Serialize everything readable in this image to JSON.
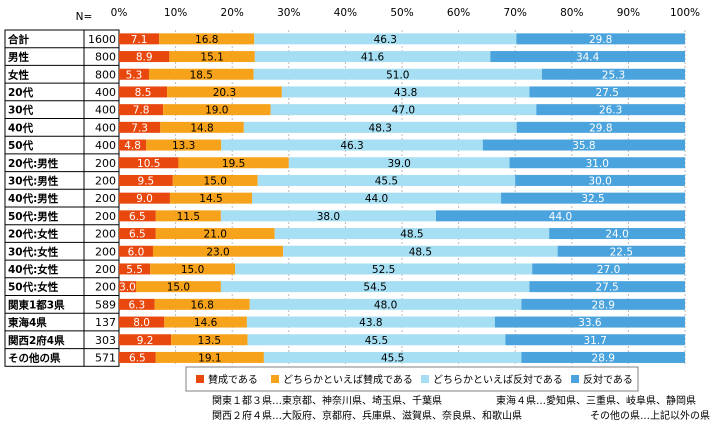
{
  "chart_data": {
    "type": "bar",
    "orientation": "horizontal",
    "stacked": "percent",
    "n_header": "N=",
    "xlim": [
      0,
      100
    ],
    "x_ticks": [
      "0%",
      "10%",
      "20%",
      "30%",
      "40%",
      "50%",
      "60%",
      "70%",
      "80%",
      "90%",
      "100%"
    ],
    "categories": [
      "合計",
      "男性",
      "女性",
      "20代",
      "30代",
      "40代",
      "50代",
      "20代:男性",
      "30代:男性",
      "40代:男性",
      "50代:男性",
      "20代:女性",
      "30代:女性",
      "40代:女性",
      "50代:女性",
      "関東1都3県",
      "東海4県",
      "関西2府4県",
      "その他の県"
    ],
    "n": [
      1600,
      800,
      800,
      400,
      400,
      400,
      400,
      200,
      200,
      200,
      200,
      200,
      200,
      200,
      200,
      589,
      137,
      303,
      571
    ],
    "series": [
      {
        "name": "賛成である",
        "color": "#e8470d",
        "values": [
          7.1,
          8.9,
          5.3,
          8.5,
          7.8,
          7.3,
          4.8,
          10.5,
          9.5,
          9.0,
          6.5,
          6.5,
          6.0,
          5.5,
          3.0,
          6.3,
          8.0,
          9.2,
          6.5
        ]
      },
      {
        "name": "どちらかといえば賛成である",
        "color": "#f7a21b",
        "values": [
          16.8,
          15.1,
          18.5,
          20.3,
          19.0,
          14.8,
          13.3,
          19.5,
          15.0,
          14.5,
          11.5,
          21.0,
          23.0,
          15.0,
          15.0,
          16.8,
          14.6,
          13.5,
          19.1
        ]
      },
      {
        "name": "どちらかといえば反対である",
        "color": "#a6dff3",
        "values": [
          46.3,
          41.6,
          51.0,
          43.8,
          47.0,
          48.3,
          46.3,
          39.0,
          45.5,
          44.0,
          38.0,
          48.5,
          48.5,
          52.5,
          54.5,
          48.0,
          43.8,
          45.5,
          45.5
        ]
      },
      {
        "name": "反対である",
        "color": "#4aa3dd",
        "values": [
          29.8,
          34.4,
          25.3,
          27.5,
          26.3,
          29.8,
          35.8,
          31.0,
          30.0,
          32.5,
          44.0,
          24.0,
          22.5,
          27.0,
          27.5,
          28.9,
          33.6,
          31.7,
          28.9
        ]
      }
    ],
    "legend_position": "bottom",
    "notes": [
      "関東１都３県…東京都、神奈川県、埼玉県、千葉県",
      "東海４県…愛知県、三重県、岐阜県、静岡県",
      "関西２府４県…大阪府、京都府、兵庫県、滋賀県、奈良県、和歌山県",
      "その他の県…上記以外の県"
    ]
  }
}
